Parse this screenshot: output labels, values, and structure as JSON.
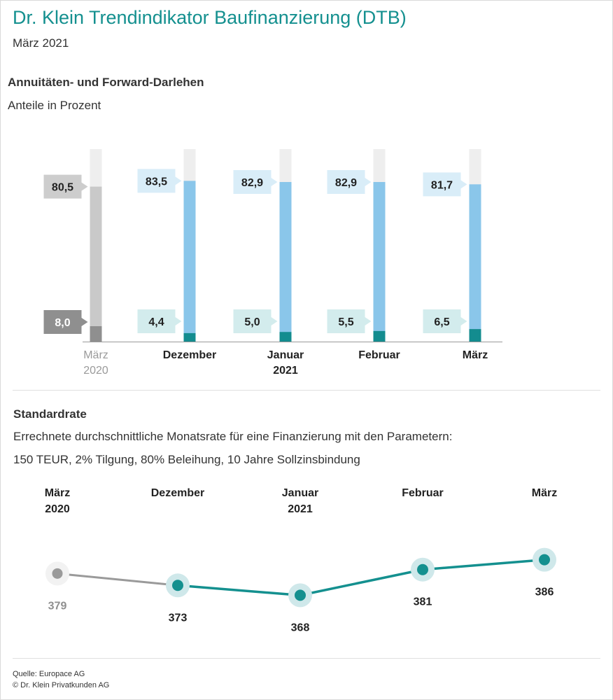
{
  "header": {
    "title": "Dr. Klein Trendindikator Baufinanzierung (DTB)",
    "date": "März 2021"
  },
  "section1": {
    "heading": "Annuitäten- und Forward-Darlehen",
    "subheading": "Anteile in Prozent"
  },
  "section2": {
    "heading": "Standardrate",
    "description_line1": "Errechnete durchschnittliche Monatsrate für eine Finanzierung mit den Parametern:",
    "description_line2": "150 TEUR, 2% Tilgung, 80% Beleihung, 10 Jahre Sollzinsbindung"
  },
  "footer": {
    "source": "Quelle: Europace AG",
    "copyright": "© Dr. Klein Privatkunden AG"
  },
  "chart_data": [
    {
      "type": "bar",
      "title": "Annuitäten- und Forward-Darlehen",
      "ylabel": "Anteile in Prozent",
      "ylim": [
        0,
        100
      ],
      "categories": [
        [
          "März",
          "2020"
        ],
        [
          "Dezember"
        ],
        [
          "Januar",
          "2021"
        ],
        [
          "Februar"
        ],
        [
          "März"
        ]
      ],
      "series": [
        {
          "name": "Annuitäten-Darlehen",
          "values": [
            80.5,
            83.5,
            82.9,
            82.9,
            81.7
          ],
          "labels": [
            "80,5",
            "83,5",
            "82,9",
            "82,9",
            "81,7"
          ]
        },
        {
          "name": "Forward-Darlehen",
          "values": [
            8.0,
            4.4,
            5.0,
            5.5,
            6.5
          ],
          "labels": [
            "8,0",
            "4,4",
            "5,0",
            "5,5",
            "6,5"
          ]
        }
      ],
      "colors": {
        "main": "#8ac6ea",
        "main_prev": "#c9c9c9",
        "forward": "#138c8f",
        "forward_prev": "#8f8f8f",
        "track": "#eeeeee",
        "label_main": "#d9edf8",
        "label_forward": "#d3eced",
        "label_prev": "#cdcdcd",
        "label_forward_prev": "#8f8f8f"
      }
    },
    {
      "type": "line",
      "title": "Standardrate",
      "categories": [
        [
          "März",
          "2020"
        ],
        [
          "Dezember"
        ],
        [
          "Januar",
          "2021"
        ],
        [
          "Februar"
        ],
        [
          "März"
        ]
      ],
      "values": [
        379,
        373,
        368,
        381,
        386
      ],
      "labels": [
        "379",
        "373",
        "368",
        "381",
        "386"
      ],
      "colors": {
        "line": "#14908f",
        "line_prev": "#9a9a9a",
        "halo": "#cfe8ea",
        "halo_prev": "#f2f2f2",
        "label_prev": "#8f8f8f"
      }
    }
  ]
}
